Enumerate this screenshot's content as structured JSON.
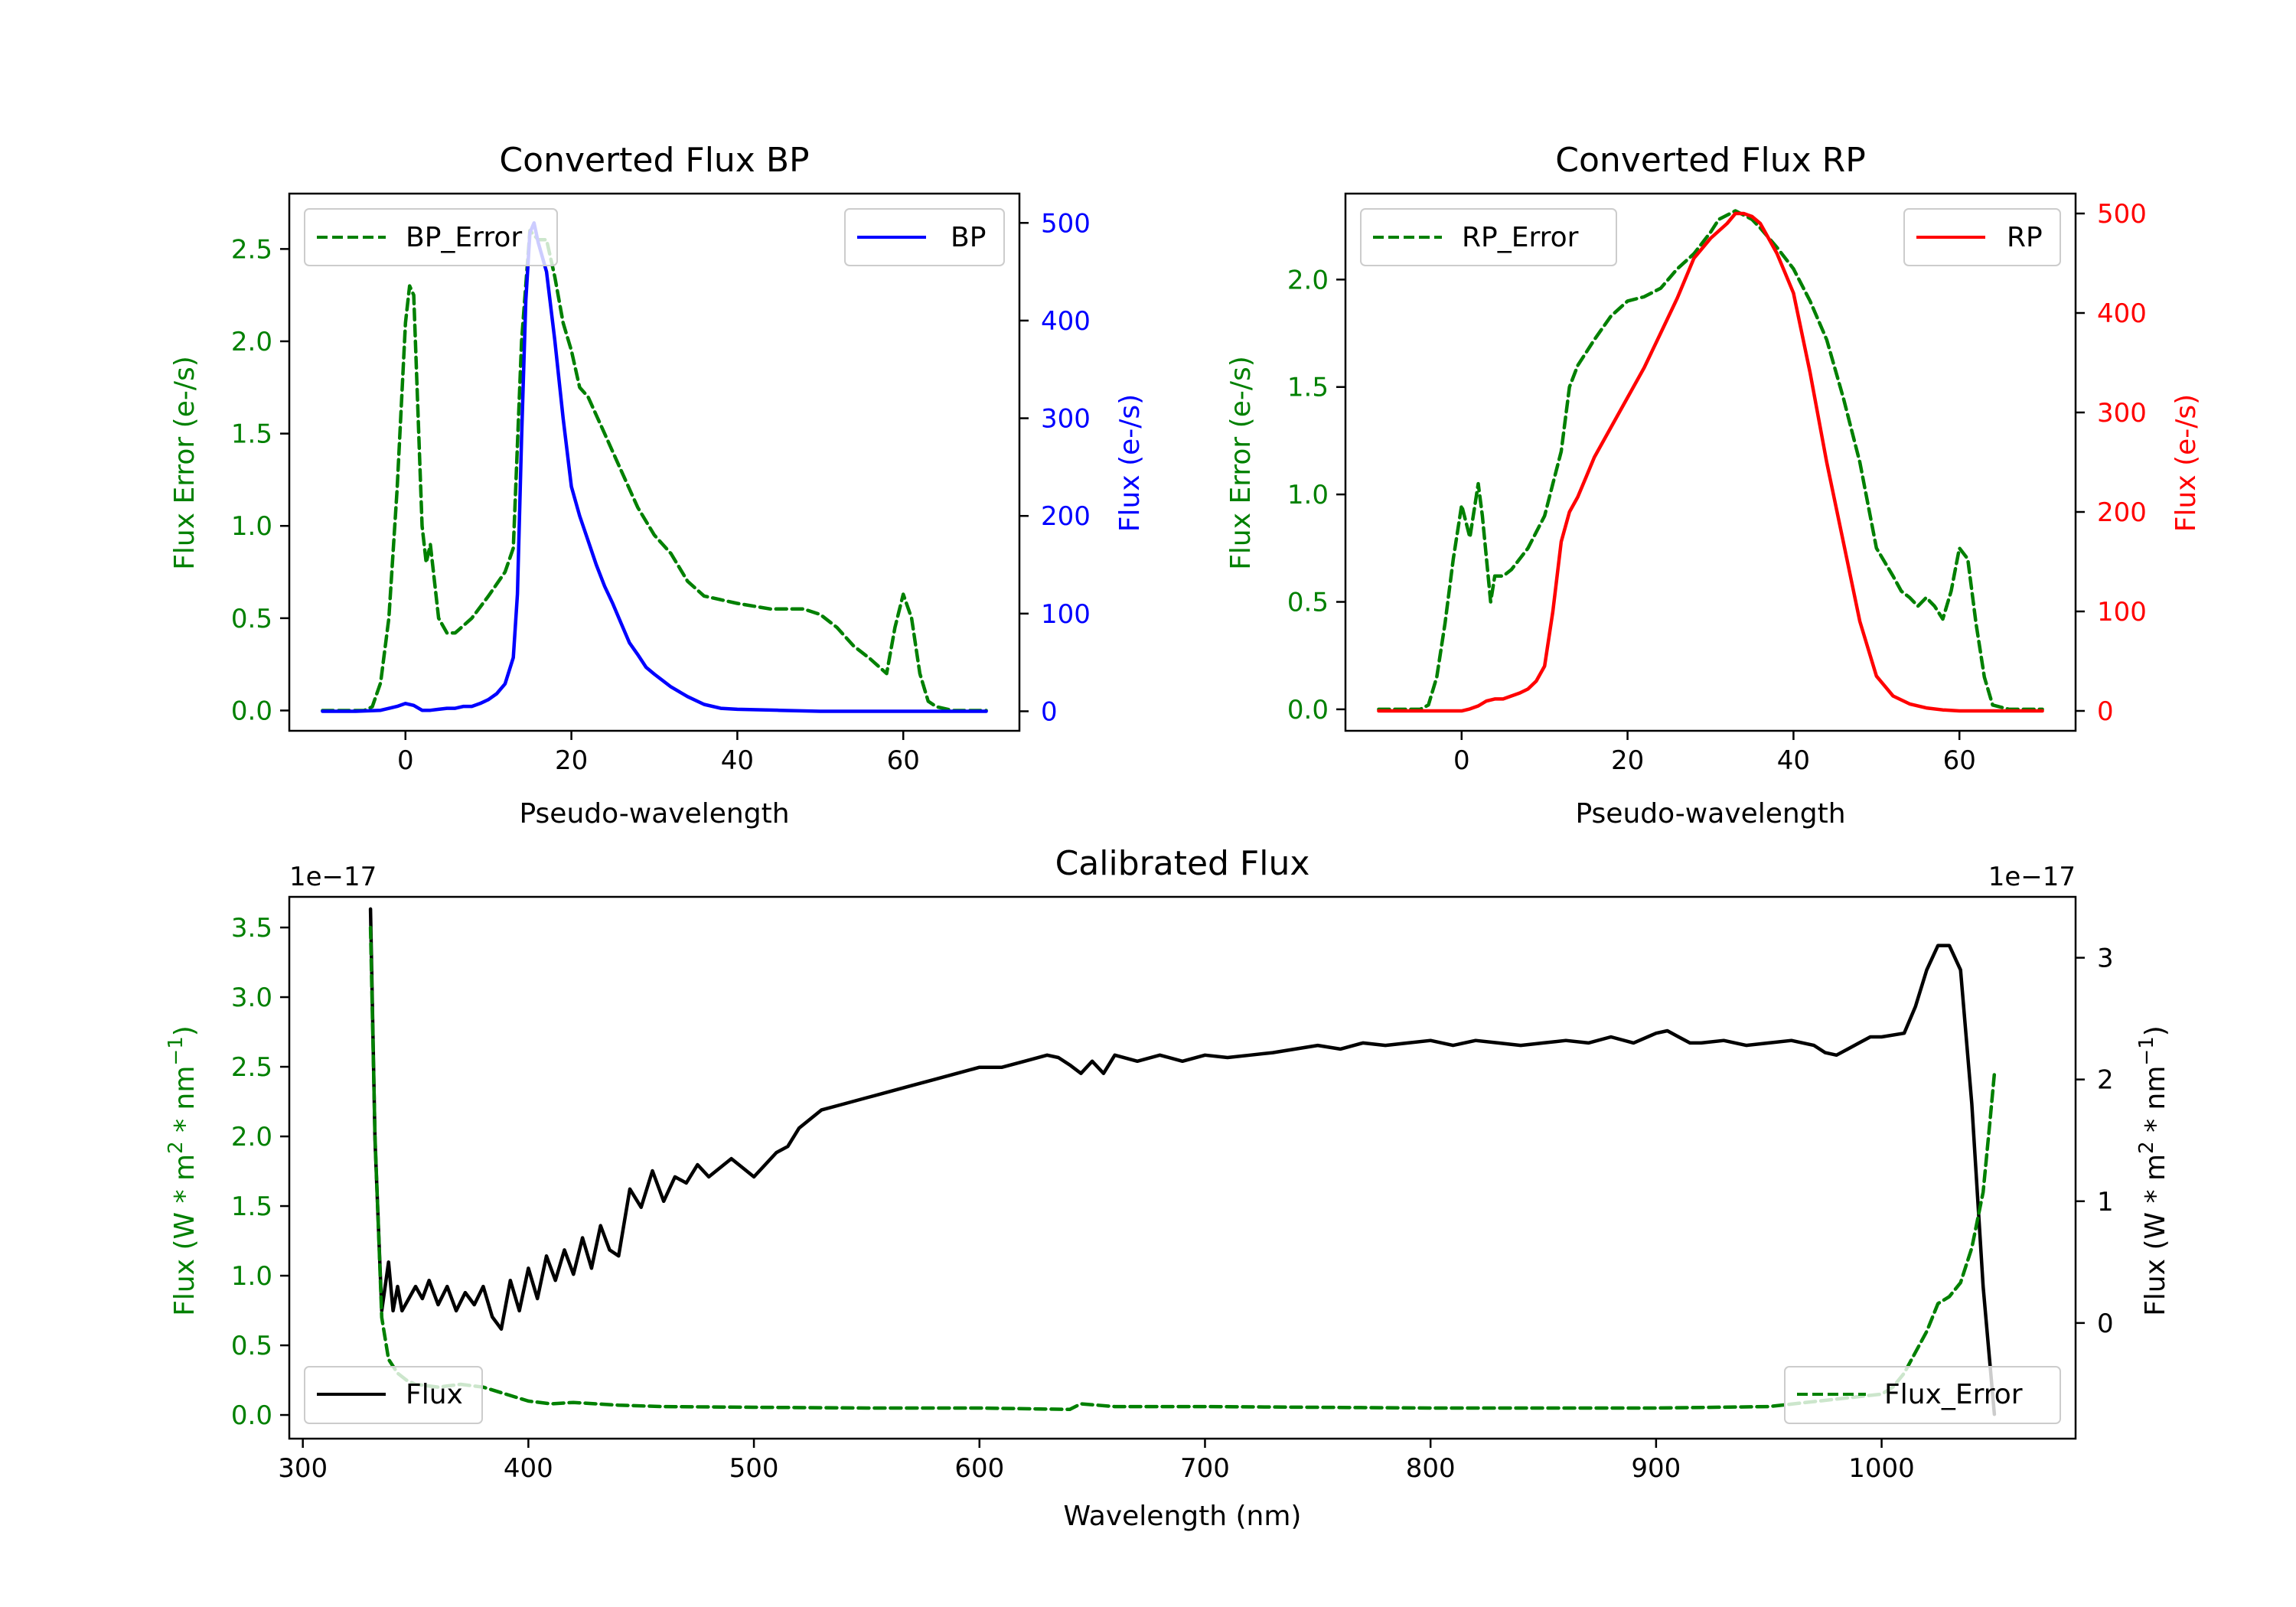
{
  "chart_data": [
    {
      "type": "line",
      "id": "bp",
      "title": "Converted Flux BP",
      "xlabel": "Pseudo-wavelength",
      "ylabel_left": "Flux Error (e-/s)",
      "ylabel_right": "Flux (e-/s)",
      "xlim": [
        -14,
        74
      ],
      "ylim_left": [
        -0.11,
        2.8
      ],
      "ylim_right": [
        -20,
        530
      ],
      "xticks": [
        "0",
        "20",
        "40",
        "60"
      ],
      "yticks_left": [
        "0.0",
        "0.5",
        "1.0",
        "1.5",
        "2.0",
        "2.5"
      ],
      "yticks_right": [
        "0",
        "100",
        "200",
        "300",
        "400",
        "500"
      ],
      "series": [
        {
          "name": "BP_Error",
          "axis": "left",
          "color": "#008000",
          "dash": "dashed",
          "x": [
            -10,
            -5,
            -4,
            -3,
            -2,
            -1,
            0,
            0.5,
            1,
            2,
            2.5,
            3,
            3.5,
            4,
            5,
            6,
            8,
            10,
            12,
            13,
            14,
            15,
            16,
            17,
            18,
            19,
            20,
            21,
            22,
            23,
            24,
            26,
            28,
            30,
            32,
            34,
            36,
            38,
            40,
            44,
            48,
            50,
            52,
            54,
            56,
            58,
            59,
            60,
            61,
            62,
            63,
            64,
            66,
            70
          ],
          "values": [
            0,
            0,
            0.02,
            0.15,
            0.5,
            1.2,
            2.1,
            2.3,
            2.25,
            1.0,
            0.8,
            0.9,
            0.7,
            0.5,
            0.42,
            0.42,
            0.5,
            0.62,
            0.75,
            0.88,
            2.0,
            2.6,
            2.55,
            2.55,
            2.35,
            2.1,
            1.95,
            1.75,
            1.7,
            1.6,
            1.5,
            1.3,
            1.1,
            0.95,
            0.85,
            0.7,
            0.62,
            0.6,
            0.58,
            0.55,
            0.55,
            0.52,
            0.45,
            0.35,
            0.28,
            0.2,
            0.45,
            0.63,
            0.5,
            0.2,
            0.05,
            0.02,
            0,
            0
          ]
        },
        {
          "name": "BP",
          "axis": "right",
          "color": "#0000ff",
          "dash": "solid",
          "x": [
            -10,
            -6,
            -3,
            -1,
            0,
            1,
            2,
            3,
            4,
            5,
            6,
            7,
            8,
            9,
            10,
            11,
            12,
            13,
            13.5,
            14,
            14.5,
            15,
            15.5,
            16,
            17,
            18,
            19,
            20,
            21,
            22,
            23,
            24,
            25,
            26,
            27,
            28,
            29,
            30,
            32,
            34,
            36,
            38,
            40,
            45,
            50,
            55,
            60,
            65,
            70
          ],
          "values": [
            0,
            0,
            1,
            5,
            8,
            6,
            1,
            1,
            2,
            3,
            3,
            5,
            5,
            8,
            12,
            18,
            28,
            55,
            120,
            280,
            420,
            490,
            500,
            480,
            450,
            380,
            300,
            230,
            200,
            175,
            150,
            128,
            110,
            90,
            70,
            58,
            45,
            38,
            25,
            15,
            7,
            3,
            2,
            1,
            0,
            0,
            0,
            0,
            0
          ]
        }
      ],
      "legend": [
        {
          "label": "BP_Error",
          "location": "upper left"
        },
        {
          "label": "BP",
          "location": "upper right"
        }
      ]
    },
    {
      "type": "line",
      "id": "rp",
      "title": "Converted Flux RP",
      "xlabel": "Pseudo-wavelength",
      "ylabel_left": "Flux Error (e-/s)",
      "ylabel_right": "Flux (e-/s)",
      "xlim": [
        -14,
        74
      ],
      "ylim_left": [
        -0.1,
        2.4
      ],
      "ylim_right": [
        -20,
        520
      ],
      "xticks": [
        "0",
        "20",
        "40",
        "60"
      ],
      "yticks_left": [
        "0.0",
        "0.5",
        "1.0",
        "1.5",
        "2.0"
      ],
      "yticks_right": [
        "0",
        "100",
        "200",
        "300",
        "400",
        "500"
      ],
      "series": [
        {
          "name": "RP_Error",
          "axis": "left",
          "color": "#008000",
          "dash": "dashed",
          "x": [
            -10,
            -5,
            -4,
            -3,
            -2,
            -1,
            0,
            1,
            2,
            2.5,
            3,
            3.5,
            4,
            5,
            6,
            8,
            10,
            11,
            12,
            13,
            14,
            16,
            18,
            20,
            22,
            24,
            26,
            28,
            30,
            31,
            32,
            33,
            34,
            35,
            36,
            38,
            40,
            42,
            44,
            46,
            48,
            50,
            52,
            53,
            54,
            55,
            56,
            57,
            58,
            59,
            60,
            61,
            62,
            63,
            64,
            66,
            70
          ],
          "values": [
            0,
            0,
            0.02,
            0.15,
            0.4,
            0.7,
            0.95,
            0.8,
            1.05,
            0.9,
            0.7,
            0.5,
            0.62,
            0.62,
            0.65,
            0.75,
            0.9,
            1.05,
            1.2,
            1.5,
            1.6,
            1.72,
            1.83,
            1.9,
            1.92,
            1.96,
            2.05,
            2.12,
            2.22,
            2.28,
            2.3,
            2.32,
            2.3,
            2.28,
            2.24,
            2.15,
            2.05,
            1.9,
            1.72,
            1.45,
            1.15,
            0.75,
            0.62,
            0.55,
            0.52,
            0.48,
            0.52,
            0.48,
            0.42,
            0.55,
            0.75,
            0.7,
            0.4,
            0.15,
            0.02,
            0,
            0
          ]
        },
        {
          "name": "RP",
          "axis": "right",
          "color": "#ff0000",
          "dash": "solid",
          "x": [
            -10,
            -2,
            0,
            1,
            2,
            3,
            4,
            5,
            6,
            7,
            8,
            9,
            10,
            11,
            12,
            13,
            14,
            15,
            16,
            18,
            20,
            22,
            24,
            26,
            28,
            30,
            32,
            33,
            34,
            35,
            36,
            37,
            38,
            39,
            40,
            42,
            44,
            46,
            48,
            50,
            52,
            54,
            56,
            58,
            60,
            62,
            64,
            66,
            70
          ],
          "values": [
            0,
            0,
            0,
            2,
            5,
            10,
            12,
            12,
            15,
            18,
            22,
            30,
            45,
            100,
            170,
            200,
            215,
            235,
            255,
            285,
            315,
            345,
            380,
            415,
            455,
            475,
            490,
            500,
            500,
            497,
            490,
            475,
            460,
            440,
            420,
            340,
            250,
            170,
            90,
            35,
            15,
            7,
            3,
            1,
            0,
            0,
            0,
            0,
            0
          ]
        }
      ],
      "legend": [
        {
          "label": "RP_Error",
          "location": "upper left"
        },
        {
          "label": "RP",
          "location": "upper right"
        }
      ]
    },
    {
      "type": "line",
      "id": "cal",
      "title": "Calibrated Flux",
      "xlabel": "Wavelength (nm)",
      "ylabel_left_parts": [
        "Flux (W * m",
        "2",
        " * nm",
        "−1",
        ")"
      ],
      "ylabel_right_parts": [
        "Flux (W * m",
        "2",
        " * nm",
        "−1",
        ")"
      ],
      "offset_left": "1e−17",
      "offset_right": "1e−17",
      "xlim": [
        294,
        1086
      ],
      "ylim_left": [
        -0.17,
        3.72
      ],
      "ylim_right": [
        -0.95,
        3.5
      ],
      "xticks": [
        "300",
        "400",
        "500",
        "600",
        "700",
        "800",
        "900",
        "1000"
      ],
      "yticks_left": [
        "0.0",
        "0.5",
        "1.0",
        "1.5",
        "2.0",
        "2.5",
        "3.0",
        "3.5"
      ],
      "yticks_right": [
        "0",
        "1",
        "2",
        "3"
      ],
      "series": [
        {
          "name": "Flux",
          "axis": "right",
          "color": "#000000",
          "dash": "solid",
          "x": [
            330,
            332,
            335,
            338,
            340,
            342,
            344,
            347,
            350,
            353,
            356,
            360,
            364,
            368,
            372,
            376,
            380,
            384,
            388,
            392,
            396,
            400,
            404,
            408,
            412,
            416,
            420,
            424,
            428,
            432,
            436,
            440,
            445,
            450,
            455,
            460,
            465,
            470,
            475,
            480,
            490,
            500,
            510,
            515,
            520,
            530,
            540,
            550,
            560,
            570,
            580,
            590,
            600,
            610,
            620,
            630,
            635,
            640,
            645,
            650,
            655,
            660,
            670,
            680,
            690,
            700,
            710,
            720,
            730,
            740,
            750,
            760,
            770,
            780,
            790,
            800,
            810,
            820,
            830,
            840,
            850,
            860,
            870,
            880,
            890,
            900,
            905,
            910,
            915,
            920,
            930,
            940,
            950,
            960,
            970,
            975,
            980,
            985,
            990,
            995,
            1000,
            1010,
            1015,
            1020,
            1025,
            1030,
            1035,
            1040,
            1045,
            1050
          ],
          "values": [
            3.4,
            1.5,
            0.1,
            0.5,
            0.1,
            0.3,
            0.1,
            0.2,
            0.3,
            0.2,
            0.35,
            0.15,
            0.3,
            0.1,
            0.25,
            0.15,
            0.3,
            0.05,
            -0.05,
            0.35,
            0.1,
            0.45,
            0.2,
            0.55,
            0.35,
            0.6,
            0.4,
            0.7,
            0.45,
            0.8,
            0.6,
            0.55,
            1.1,
            0.95,
            1.25,
            1.0,
            1.2,
            1.15,
            1.3,
            1.2,
            1.35,
            1.2,
            1.4,
            1.45,
            1.6,
            1.75,
            1.8,
            1.85,
            1.9,
            1.95,
            2.0,
            2.05,
            2.1,
            2.1,
            2.15,
            2.2,
            2.18,
            2.12,
            2.05,
            2.15,
            2.05,
            2.2,
            2.15,
            2.2,
            2.15,
            2.2,
            2.18,
            2.2,
            2.22,
            2.25,
            2.28,
            2.25,
            2.3,
            2.28,
            2.3,
            2.32,
            2.28,
            2.32,
            2.3,
            2.28,
            2.3,
            2.32,
            2.3,
            2.35,
            2.3,
            2.38,
            2.4,
            2.35,
            2.3,
            2.3,
            2.32,
            2.28,
            2.3,
            2.32,
            2.28,
            2.22,
            2.2,
            2.25,
            2.3,
            2.35,
            2.35,
            2.38,
            2.6,
            2.9,
            3.1,
            3.1,
            2.9,
            1.8,
            0.3,
            -0.75
          ]
        },
        {
          "name": "Flux_Error",
          "axis": "left",
          "color": "#008000",
          "dash": "dashed",
          "x": [
            330,
            332,
            335,
            338,
            342,
            346,
            350,
            360,
            370,
            380,
            390,
            400,
            410,
            420,
            440,
            460,
            500,
            550,
            600,
            640,
            645,
            660,
            700,
            800,
            900,
            950,
            1000,
            1005,
            1010,
            1020,
            1025,
            1030,
            1035,
            1040,
            1045,
            1048,
            1050
          ],
          "values": [
            3.5,
            2.0,
            0.7,
            0.4,
            0.3,
            0.25,
            0.22,
            0.2,
            0.22,
            0.2,
            0.15,
            0.1,
            0.08,
            0.09,
            0.07,
            0.06,
            0.055,
            0.05,
            0.05,
            0.04,
            0.08,
            0.06,
            0.06,
            0.05,
            0.05,
            0.06,
            0.15,
            0.2,
            0.3,
            0.6,
            0.8,
            0.85,
            0.95,
            1.2,
            1.6,
            2.1,
            2.45
          ]
        }
      ],
      "legend": [
        {
          "label": "Flux",
          "location": "lower left"
        },
        {
          "label": "Flux_Error",
          "location": "lower right"
        }
      ]
    }
  ]
}
